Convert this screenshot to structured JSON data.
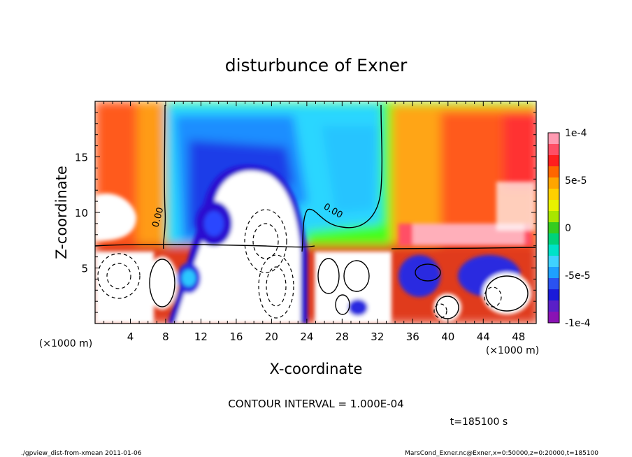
{
  "chart_data": {
    "type": "heatmap",
    "title": "disturbunce of Exner",
    "xlabel": "X-coordinate",
    "ylabel": "Z-coordinate",
    "x_unit": "(×1000 m)",
    "y_unit": "(×1000 m)",
    "xlim": [
      0,
      50
    ],
    "ylim": [
      0,
      20
    ],
    "x_ticks": [
      "4",
      "8",
      "12",
      "16",
      "20",
      "24",
      "28",
      "32",
      "36",
      "40",
      "44",
      "48"
    ],
    "x_tick_values": [
      4,
      8,
      12,
      16,
      20,
      24,
      28,
      32,
      36,
      40,
      44,
      48
    ],
    "y_ticks": [
      "5",
      "10",
      "15"
    ],
    "y_tick_values": [
      5,
      10,
      15
    ],
    "colorbar": {
      "range": [
        -0.0001,
        0.0001
      ],
      "tick_labels": [
        "1e-4",
        "5e-5",
        "0",
        "-5e-5",
        "-1e-4"
      ],
      "tick_values": [
        0.0001,
        5e-05,
        0,
        -5e-05,
        -0.0001
      ],
      "colors": [
        "#ff9bb2",
        "#ff4f66",
        "#ff1f1f",
        "#ff6600",
        "#ffa500",
        "#ffd000",
        "#e8f200",
        "#a8e600",
        "#35cc1f",
        "#00d27a",
        "#00e2c8",
        "#3fd2ff",
        "#1ea0ff",
        "#2a52f0",
        "#1a1ad8",
        "#5a1fc8",
        "#8a12b4"
      ]
    },
    "contour_labels": [
      "0.00",
      "0.00"
    ],
    "contour_interval_text": "CONTOUR INTERVAL = 1.000E-04",
    "time_text": "t=185100 s"
  },
  "footer": {
    "left": "./gpview_dist-from-xmean  2011-01-06",
    "right": "MarsCond_Exner.nc@Exner,x=0:50000,z=0:20000,t=185100"
  }
}
